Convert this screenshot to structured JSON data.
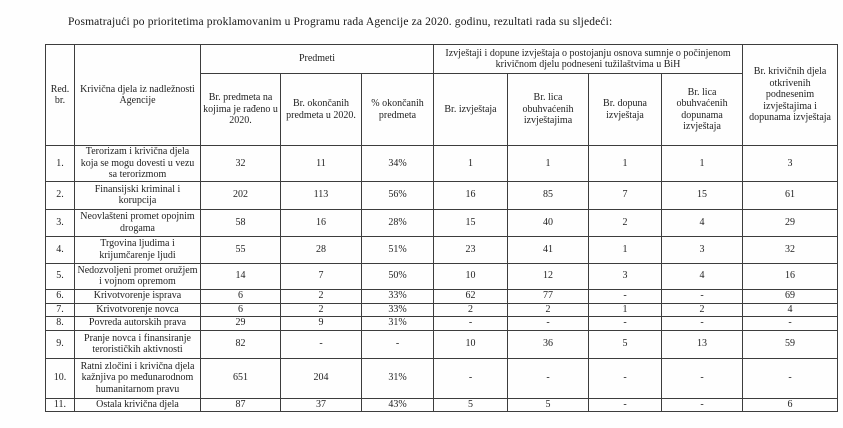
{
  "intro": "Posmatrajući po prioritetima proklamovanim u Programu rada Agencije za 2020. godinu, rezultati rada su sljedeći:",
  "table": {
    "header": {
      "red_br": "Red. br.",
      "krivicna_djela": "Krivična djela iz nadležnosti Agencije",
      "predmeti_group": "Predmeti",
      "izvjestaji_group": "Izvještaji i dopune izvještaja o postojanju osnova sumnje o počinjenom krivičnom djelu podneseni tužilaštvima u BiH",
      "br_krivicnih": "Br. krivičnih djela otkrivenih podnesenim izvještajima i dopunama izvještaja",
      "sub": [
        "Br. predmeta na kojima je rađeno u 2020.",
        "Br. okončanih predmeta u 2020.",
        "% okončanih predmeta",
        "Br. izvještaja",
        "Br. lica obuhvaćenih izvještajima",
        "Br. dopuna izvještaja",
        "Br. lica obuhvaćenih dopunama izvještaja"
      ]
    },
    "rows": [
      {
        "num": "1.",
        "name": "Terorizam i krivična djela koja se mogu dovesti u vezu sa terorizmom",
        "values": [
          "32",
          "11",
          "34%",
          "1",
          "1",
          "1",
          "1",
          "3"
        ]
      },
      {
        "num": "2.",
        "name": "Finansijski kriminal i korupcija",
        "values": [
          "202",
          "113",
          "56%",
          "16",
          "85",
          "7",
          "15",
          "61"
        ]
      },
      {
        "num": "3.",
        "name": "Neovlašteni promet opojnim drogama",
        "values": [
          "58",
          "16",
          "28%",
          "15",
          "40",
          "2",
          "4",
          "29"
        ]
      },
      {
        "num": "4.",
        "name": "Trgovina ljudima i krijumčarenje ljudi",
        "values": [
          "55",
          "28",
          "51%",
          "23",
          "41",
          "1",
          "3",
          "32"
        ]
      },
      {
        "num": "5.",
        "name": "Nedozvoljeni promet oružjem i vojnom opremom",
        "values": [
          "14",
          "7",
          "50%",
          "10",
          "12",
          "3",
          "4",
          "16"
        ]
      },
      {
        "num": "6.",
        "name": "Krivotvorenje isprava",
        "values": [
          "6",
          "2",
          "33%",
          "62",
          "77",
          "-",
          "-",
          "69"
        ]
      },
      {
        "num": "7.",
        "name": "Krivotvorenje novca",
        "values": [
          "6",
          "2",
          "33%",
          "2",
          "2",
          "1",
          "2",
          "4"
        ]
      },
      {
        "num": "8.",
        "name": "Povreda autorskih prava",
        "values": [
          "29",
          "9",
          "31%",
          "-",
          "-",
          "-",
          "-",
          "-"
        ]
      },
      {
        "num": "9.",
        "name": "Pranje novca i finansiranje terorističkih aktivnosti",
        "values": [
          "82",
          "-",
          "-",
          "10",
          "36",
          "5",
          "13",
          "59"
        ]
      },
      {
        "num": "10.",
        "name": "Ratni zločini i krivična djela kažnjiva po međunarodnom humanitarnom pravu",
        "values": [
          "651",
          "204",
          "31%",
          "-",
          "-",
          "-",
          "-",
          "-"
        ]
      },
      {
        "num": "11.",
        "name": "Ostala krivična djela",
        "values": [
          "87",
          "37",
          "43%",
          "5",
          "5",
          "-",
          "-",
          "6"
        ]
      }
    ]
  }
}
